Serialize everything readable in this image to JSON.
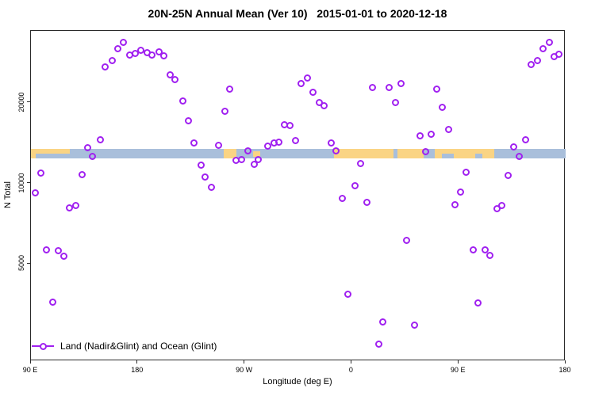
{
  "chart_data": {
    "type": "scatter",
    "title": "20N-25N Annual Mean (Ver 10)   2015-01-01 to 2020-12-18",
    "xlabel": "Longitude (deg E)",
    "ylabel": "N Total",
    "x_axis": {
      "min": 90,
      "max": 540,
      "ticks": [
        {
          "value": 90,
          "label": "90 E"
        },
        {
          "value": 180,
          "label": "180"
        },
        {
          "value": 270,
          "label": "90 W"
        },
        {
          "value": 360,
          "label": "0"
        },
        {
          "value": 450,
          "label": "90 E"
        },
        {
          "value": 540,
          "label": "180"
        }
      ]
    },
    "y_axis": {
      "scale": "log",
      "min": 2200,
      "max": 37000,
      "ticks": [
        {
          "value": 5000,
          "label": "5000"
        },
        {
          "value": 10000,
          "label": "10000"
        },
        {
          "value": 20000,
          "label": "20000"
        }
      ]
    },
    "grid": false,
    "legend": {
      "position": "bottom-left-inside",
      "label": "Land (Nadir&Glint) and Ocean (Glint)"
    },
    "colors": {
      "marker": "#A020F0",
      "land": "#FAD484",
      "ocean": "#A9BFDB",
      "axis": "#2a2a2a"
    },
    "map_band": {
      "value_top": 13480,
      "value_bottom": 12380,
      "segments": [
        {
          "from": 90,
          "to": 123,
          "type": "land"
        },
        {
          "from": 123,
          "to": 252.5,
          "type": "ocean"
        },
        {
          "from": 252.5,
          "to": 263,
          "type": "land"
        },
        {
          "from": 263,
          "to": 345,
          "type": "ocean"
        },
        {
          "from": 345,
          "to": 395,
          "type": "land"
        },
        {
          "from": 395,
          "to": 398.5,
          "type": "ocean"
        },
        {
          "from": 398.5,
          "to": 420.5,
          "type": "land"
        },
        {
          "from": 420.5,
          "to": 430,
          "type": "ocean"
        },
        {
          "from": 430,
          "to": 480,
          "type": "land"
        },
        {
          "from": 480,
          "to": 540,
          "type": "ocean"
        }
      ],
      "overlays": [
        {
          "from": 94,
          "to": 123,
          "type": "ocean",
          "part": "bottom"
        },
        {
          "from": 277,
          "to": 283,
          "type": "land",
          "part": "middle"
        },
        {
          "from": 436,
          "to": 446,
          "type": "ocean",
          "part": "bottom"
        },
        {
          "from": 464,
          "to": 470,
          "type": "ocean",
          "part": "bottom"
        }
      ]
    },
    "series": [
      {
        "name": "Land (Nadir&Glint) and Ocean (Glint)",
        "marker": "open-circle",
        "color": "#A020F0",
        "points": [
          [
            94,
            9200
          ],
          [
            98.5,
            10900
          ],
          [
            103,
            5640
          ],
          [
            108.5,
            3590
          ],
          [
            113,
            5600
          ],
          [
            118,
            5360
          ],
          [
            122.5,
            8120
          ],
          [
            128,
            8250
          ],
          [
            133,
            10800
          ],
          [
            137.5,
            13600
          ],
          [
            142,
            12600
          ],
          [
            148.5,
            14600
          ],
          [
            152.5,
            27300
          ],
          [
            158.5,
            28700
          ],
          [
            163,
            31900
          ],
          [
            167.5,
            33600
          ],
          [
            173,
            30200
          ],
          [
            177.5,
            30700
          ],
          [
            182.5,
            31500
          ],
          [
            187.5,
            30800
          ],
          [
            192,
            30100
          ],
          [
            197.5,
            31000
          ],
          [
            202,
            29900
          ],
          [
            207.5,
            25500
          ],
          [
            211.5,
            24400
          ],
          [
            218,
            20300
          ],
          [
            222.5,
            17200
          ],
          [
            227.5,
            14200
          ],
          [
            233,
            11700
          ],
          [
            236.5,
            10600
          ],
          [
            242,
            9670
          ],
          [
            248,
            13900
          ],
          [
            253,
            18600
          ],
          [
            257.5,
            22500
          ],
          [
            262.5,
            12200
          ],
          [
            267,
            12300
          ],
          [
            272.5,
            13200
          ],
          [
            278,
            11800
          ],
          [
            281.5,
            12300
          ],
          [
            289.5,
            13800
          ],
          [
            294.5,
            14200
          ],
          [
            298.5,
            14300
          ],
          [
            303.5,
            16600
          ],
          [
            308,
            16500
          ],
          [
            312.5,
            14500
          ],
          [
            317.5,
            23700
          ],
          [
            323,
            24700
          ],
          [
            327.5,
            21900
          ],
          [
            332.5,
            20000
          ],
          [
            336.5,
            19500
          ],
          [
            342.5,
            14200
          ],
          [
            347,
            13200
          ],
          [
            352,
            8770
          ],
          [
            357,
            3840
          ],
          [
            362.5,
            9830
          ],
          [
            367.5,
            11900
          ],
          [
            372.5,
            8510
          ],
          [
            377.5,
            22900
          ],
          [
            383,
            2500
          ],
          [
            386,
            3030
          ],
          [
            391.5,
            22900
          ],
          [
            397,
            20100
          ],
          [
            401.5,
            23700
          ],
          [
            406,
            6110
          ],
          [
            412.5,
            2950
          ],
          [
            417.5,
            15100
          ],
          [
            422,
            13100
          ],
          [
            426.5,
            15300
          ],
          [
            431.5,
            22600
          ],
          [
            436.5,
            19300
          ],
          [
            441.5,
            15900
          ],
          [
            447,
            8340
          ],
          [
            451.5,
            9300
          ],
          [
            456.5,
            11000
          ],
          [
            462,
            5640
          ],
          [
            466.5,
            3580
          ],
          [
            472,
            5640
          ],
          [
            476,
            5380
          ],
          [
            482,
            8060
          ],
          [
            486.5,
            8260
          ],
          [
            491.5,
            10700
          ],
          [
            496.5,
            13700
          ],
          [
            501,
            12600
          ],
          [
            506,
            14600
          ],
          [
            511,
            27900
          ],
          [
            516.5,
            28800
          ],
          [
            521,
            31900
          ],
          [
            526,
            33700
          ],
          [
            530,
            29700
          ],
          [
            534,
            30500
          ]
        ]
      }
    ]
  }
}
